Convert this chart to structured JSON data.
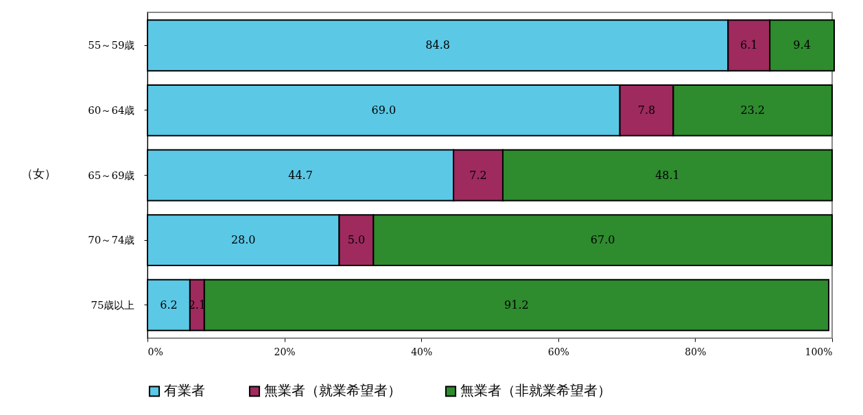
{
  "chart_data": {
    "type": "bar",
    "orientation": "horizontal",
    "stacked": true,
    "ylabel": "（女）",
    "categories": [
      "55～59歳",
      "60～64歳",
      "65～69歳",
      "70～74歳",
      "75歳以上"
    ],
    "series": [
      {
        "name": "有業者",
        "color": "#5bc8e6",
        "values": [
          84.8,
          69.0,
          44.7,
          28.0,
          6.2
        ],
        "value_labels": [
          "84.8",
          "69.0",
          "44.7",
          "28.0",
          "6.2"
        ]
      },
      {
        "name": "無業者（就業希望者）",
        "color": "#9e2a5e",
        "values": [
          6.1,
          7.8,
          7.2,
          5.0,
          2.1
        ],
        "value_labels": [
          "6.1",
          "7.8",
          "7.2",
          "5.0",
          "2.1"
        ]
      },
      {
        "name": "無業者（非就業希望者）",
        "color": "#2e8b2e",
        "values": [
          9.4,
          23.2,
          48.1,
          67.0,
          91.2
        ],
        "value_labels": [
          "9.4",
          "23.2",
          "48.1",
          "67.0",
          "91.2"
        ]
      }
    ],
    "xlim": [
      0,
      100
    ],
    "xticks": [
      {
        "value": 0,
        "label": "0%"
      },
      {
        "value": 20,
        "label": "20%"
      },
      {
        "value": 40,
        "label": "40%"
      },
      {
        "value": 60,
        "label": "60%"
      },
      {
        "value": 80,
        "label": "80%"
      },
      {
        "value": 100,
        "label": "100%"
      }
    ],
    "grid": false,
    "legend": "bottom"
  }
}
